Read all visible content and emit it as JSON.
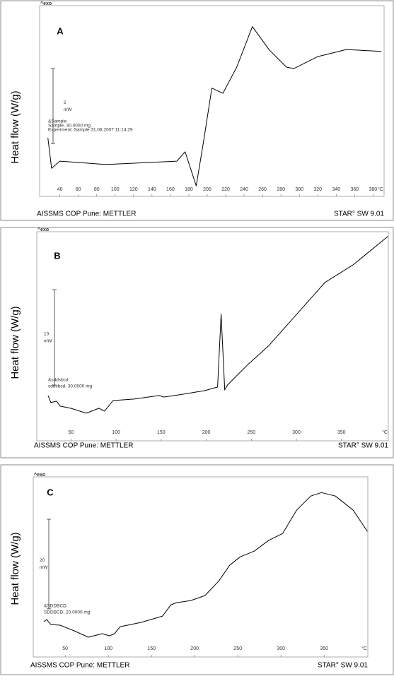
{
  "chart_data": [
    {
      "type": "line",
      "panel_label": "A",
      "exo_label": "^exo",
      "y_axis_label": "Heat flow (W/g)",
      "footer_left": "AISSMS COP Pune: METTLER",
      "footer_right": "STAR° SW 9.01",
      "x_unit": "°C",
      "scale_bar": {
        "value": 2,
        "unit": "mW"
      },
      "annotations": [
        "&Sample",
        "Sample, 30.0000 mg",
        "Experiment: Sample 31.08.2007 11:14:29"
      ],
      "xlim": [
        18,
        392
      ],
      "ylim": [
        0.36,
        5.45
      ],
      "xticks": [
        40,
        60,
        80,
        100,
        120,
        140,
        160,
        180,
        200,
        220,
        240,
        260,
        280,
        300,
        320,
        340,
        360,
        380
      ],
      "x": [
        27,
        31,
        40,
        90,
        167,
        176,
        188,
        196,
        205,
        217,
        232,
        249,
        267,
        286,
        294,
        320,
        351,
        389
      ],
      "series": [
        {
          "color": "#000000",
          "values": [
            1.92,
            1.11,
            1.3,
            1.21,
            1.3,
            1.55,
            0.64,
            1.83,
            3.25,
            3.11,
            3.81,
            4.89,
            4.28,
            3.81,
            3.77,
            4.09,
            4.28,
            4.23
          ]
        }
      ]
    },
    {
      "type": "line",
      "panel_label": "B",
      "exo_label": "^exo",
      "y_axis_label": "Heat flow (W/g)",
      "footer_left": "AISSMS COP Pune: METTLER",
      "footer_right": "STAR° SW 9.01",
      "x_unit": "°C",
      "scale_bar": {
        "value": 10,
        "unit": "mW"
      },
      "annotations": [
        "&sddsbcd",
        "sddsbcd, 30.0000 mg"
      ],
      "xlim": [
        12,
        402
      ],
      "ylim": [
        0,
        21.9
      ],
      "xticks": [
        50,
        100,
        150,
        200,
        250,
        300,
        350
      ],
      "x": [
        24.5,
        27.7,
        34,
        37.9,
        49.6,
        66.9,
        81,
        87.2,
        96.6,
        120,
        147.6,
        153,
        175,
        198.5,
        212.6,
        216.5,
        220.5,
        223.6,
        245.5,
        269,
        300.4,
        331.7,
        363,
        401.5
      ],
      "series": [
        {
          "color": "#000000",
          "values": [
            4.74,
            4.0,
            4.15,
            3.63,
            3.41,
            2.89,
            3.41,
            3.11,
            4.22,
            4.37,
            4.74,
            4.59,
            4.89,
            5.26,
            5.63,
            13.26,
            5.33,
            5.85,
            7.93,
            9.93,
            13.26,
            16.59,
            18.44,
            21.41
          ]
        }
      ]
    },
    {
      "type": "line",
      "panel_label": "C",
      "exo_label": "^exo",
      "y_axis_label": "Heat flow (W/g)",
      "footer_left": "AISSMS COP Pune: METTLER",
      "footer_right": "STAR° SW 9.01",
      "x_unit": "°C",
      "scale_bar": {
        "value": 20,
        "unit": "mW"
      },
      "annotations": [
        "&SDDBCD",
        "SDDBCD, 20.0000 mg"
      ],
      "xlim": [
        13,
        400.7
      ],
      "ylim": [
        0,
        40.2
      ],
      "xticks": [
        50,
        100,
        150,
        200,
        250,
        300,
        350
      ],
      "x": [
        25.3,
        28.5,
        33.5,
        44.1,
        60.5,
        76.8,
        93.2,
        101.4,
        107.1,
        113.7,
        138.2,
        162.8,
        172.6,
        179.1,
        195.5,
        211.9,
        228.2,
        240.5,
        252.8,
        269.1,
        285.5,
        301.9,
        318.2,
        334.6,
        346.9,
        363.2,
        383.7,
        400.1
      ],
      "series": [
        {
          "color": "#000000",
          "values": [
            7.87,
            8.35,
            7.24,
            7.09,
            5.83,
            4.41,
            5.2,
            4.72,
            5.2,
            6.77,
            7.72,
            9.13,
            11.65,
            12.13,
            12.6,
            13.7,
            17.0,
            20.47,
            22.36,
            23.62,
            25.98,
            27.56,
            32.76,
            35.91,
            36.69,
            35.91,
            32.76,
            28.03
          ]
        }
      ]
    }
  ]
}
